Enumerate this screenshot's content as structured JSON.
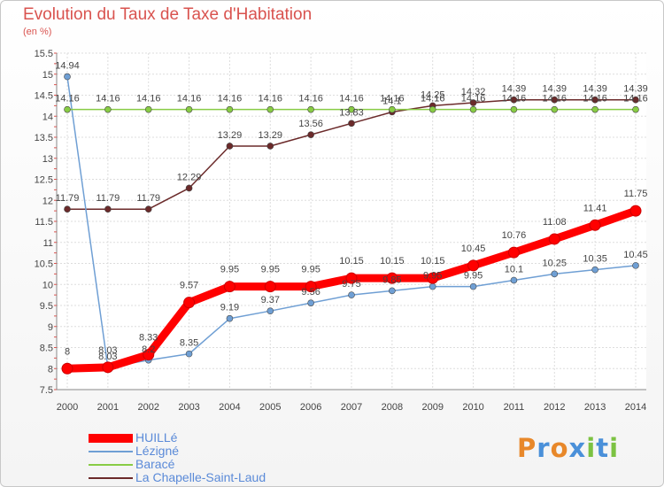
{
  "chart_data": {
    "type": "line",
    "title": "Evolution du Taux de Taxe d'Habitation",
    "subtitle": "(en %)",
    "xlabel": "",
    "ylabel": "",
    "x": [
      "2000",
      "2001",
      "2002",
      "2003",
      "2004",
      "2005",
      "2006",
      "2007",
      "2008",
      "2009",
      "2010",
      "2011",
      "2012",
      "2013",
      "2014"
    ],
    "ylim": [
      7.5,
      15.5
    ],
    "yticks": [
      "7.5",
      "8",
      "8.5",
      "9",
      "9.5",
      "10",
      "10.5",
      "11",
      "11.5",
      "12",
      "12.5",
      "13",
      "13.5",
      "14",
      "14.5",
      "15",
      "15.5"
    ],
    "grid": true,
    "legend_position": "bottom-left",
    "series": [
      {
        "name": "HUILLé",
        "color": "#ff0000",
        "values": [
          8,
          8.03,
          8.33,
          9.57,
          9.95,
          9.95,
          9.95,
          10.15,
          10.15,
          10.15,
          10.45,
          10.76,
          11.08,
          11.41,
          11.75
        ]
      },
      {
        "name": "Lézigné",
        "color": "#6f9fd4",
        "values": [
          14.94,
          8.03,
          8.2,
          8.35,
          9.19,
          9.37,
          9.56,
          9.75,
          9.85,
          9.95,
          9.95,
          10.1,
          10.25,
          10.35,
          10.45
        ]
      },
      {
        "name": "Baracé",
        "color": "#88cc44",
        "values": [
          14.16,
          14.16,
          14.16,
          14.16,
          14.16,
          14.16,
          14.16,
          14.16,
          14.16,
          14.16,
          14.16,
          14.16,
          14.16,
          14.16,
          14.16
        ]
      },
      {
        "name": "La Chapelle-Saint-Laud",
        "color": "#6b2a2a",
        "values": [
          11.79,
          11.79,
          11.79,
          12.29,
          13.29,
          13.29,
          13.56,
          13.83,
          14.1,
          14.25,
          14.32,
          14.39,
          14.39,
          14.39,
          14.39
        ]
      }
    ],
    "data_labels": [
      [
        "8",
        "8.03",
        "8.33",
        "9.57",
        "9.95",
        "9.95",
        "9.95",
        "10.15",
        "10.15",
        "10.15",
        "10.45",
        "10.76",
        "11.08",
        "11.41",
        "11.75"
      ],
      [
        "14.94",
        "8.03",
        "8.2",
        "8.35",
        "9.19",
        "9.37",
        "9.56",
        "9.75",
        "9.85",
        "9.95",
        "9.95",
        "10.1",
        "10.25",
        "10.35",
        "10.45"
      ],
      [
        "14.16",
        "14.16",
        "14.16",
        "14.16",
        "14.16",
        "14.16",
        "14.16",
        "14.16",
        "14.16",
        "14.16",
        "14.16",
        "14.16",
        "14.16",
        "14.16",
        "14.16"
      ],
      [
        "11.79",
        "11.79",
        "11.79",
        "12.29",
        "13.29",
        "13.29",
        "13.56",
        "13.83",
        "14.1",
        "14.25",
        "14.32",
        "14.39",
        "14.39",
        "14.39",
        "14.39"
      ]
    ]
  },
  "logo": {
    "text": "Proxiti",
    "colors": [
      "#e8882a",
      "#4a90d9",
      "#e8882a",
      "#4a90d9",
      "#7cc242",
      "#4a90d9",
      "#7cc242"
    ]
  }
}
